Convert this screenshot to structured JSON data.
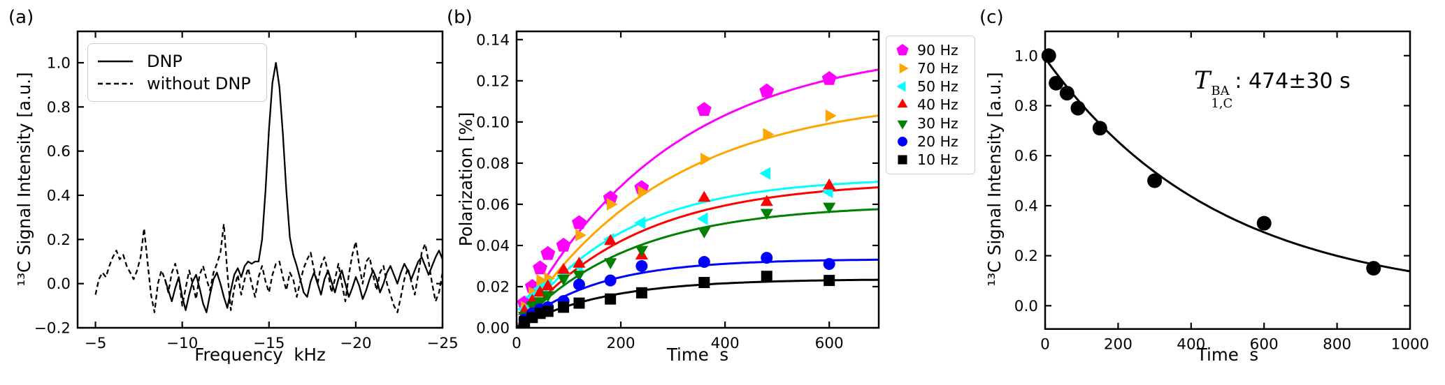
{
  "figure": {
    "background": "#ffffff",
    "axis_color": "#000000"
  },
  "chart_data": [
    {
      "id": "a",
      "type": "line",
      "panel_label": "(a)",
      "xlabel": "Frequency  kHz",
      "ylabel": "¹³C Signal Intensity [a.u.]",
      "xlim": [
        -3.97,
        -25.0
      ],
      "ylim": [
        -0.2,
        1.142
      ],
      "grid": false,
      "legend_position": "upper-left-inside",
      "xticks": [
        {
          "v": -5,
          "label": "−5"
        },
        {
          "v": -10,
          "label": "−10"
        },
        {
          "v": -15,
          "label": "−15"
        },
        {
          "v": -20,
          "label": "−20"
        },
        {
          "v": -25,
          "label": "−25"
        }
      ],
      "yticks": [
        {
          "v": -0.2,
          "label": "−0.2"
        },
        {
          "v": 0.0,
          "label": "0.0"
        },
        {
          "v": 0.2,
          "label": "0.2"
        },
        {
          "v": 0.4,
          "label": "0.4"
        },
        {
          "v": 0.6,
          "label": "0.6"
        },
        {
          "v": 0.8,
          "label": "0.8"
        },
        {
          "v": 1.0,
          "label": "1.0"
        }
      ],
      "legend": [
        {
          "label": "DNP",
          "line": "solid"
        },
        {
          "label": "without DNP",
          "line": "dashed"
        }
      ],
      "peak": {
        "center_khz": -15.4,
        "height": 1.0
      },
      "series": [
        {
          "name": "DNP",
          "style": "solid",
          "color": "#000000",
          "x_start": -9.0,
          "x_step": -0.2,
          "y": [
            0.02,
            -0.03,
            -0.08,
            -0.02,
            0.03,
            -0.06,
            -0.12,
            -0.05,
            0.01,
            0.04,
            -0.02,
            -0.09,
            -0.13,
            -0.05,
            0.02,
            0.05,
            0.0,
            -0.06,
            -0.11,
            -0.03,
            0.04,
            0.07,
            0.03,
            0.08,
            0.1,
            0.09,
            0.1,
            0.1,
            0.2,
            0.42,
            0.7,
            0.91,
            1.0,
            0.89,
            0.68,
            0.42,
            0.21,
            0.13,
            0.08,
            0.02,
            -0.04,
            -0.06,
            0.01,
            0.05,
            0.0,
            -0.05,
            0.02,
            0.06,
            0.01,
            -0.04,
            0.02,
            0.06,
            0.0,
            -0.06,
            -0.02,
            0.03,
            -0.01,
            -0.07,
            -0.03,
            0.02,
            0.06,
            0.02,
            -0.04,
            0.0,
            0.05,
            0.08,
            0.04,
            0.0,
            0.05,
            0.09,
            0.06,
            0.02,
            0.06,
            0.1,
            0.12,
            0.08,
            0.04,
            0.08,
            0.12,
            0.15,
            0.11
          ]
        },
        {
          "name": "without DNP",
          "style": "dashed",
          "color": "#000000",
          "x_start": -5.0,
          "x_step": -0.2,
          "y": [
            -0.05,
            0.02,
            0.05,
            0.03,
            0.08,
            0.12,
            0.15,
            0.11,
            0.13,
            0.08,
            0.05,
            0.02,
            0.06,
            0.12,
            0.25,
            0.1,
            -0.05,
            -0.13,
            0.0,
            0.06,
            0.02,
            -0.04,
            0.05,
            0.09,
            0.03,
            -0.1,
            -0.02,
            0.06,
            0.0,
            -0.07,
            0.04,
            0.08,
            0.02,
            -0.03,
            0.05,
            0.09,
            0.14,
            0.27,
            0.05,
            -0.12,
            -0.02,
            0.04,
            -0.05,
            0.02,
            0.07,
            0.0,
            -0.06,
            0.03,
            0.08,
            0.01,
            -0.04,
            0.04,
            0.09,
            0.1,
            0.03,
            -0.03,
            0.05,
            0.02,
            -0.06,
            0.01,
            0.07,
            0.11,
            0.14,
            0.06,
            0.0,
            0.08,
            0.12,
            0.05,
            -0.04,
            0.02,
            0.09,
            0.0,
            -0.08,
            0.04,
            0.13,
            0.19,
            0.08,
            0.0,
            0.1,
            0.12,
            0.04,
            -0.03,
            0.05,
            0.08,
            0.0,
            -0.05,
            -0.1,
            -0.13,
            -0.06,
            0.02,
            0.07,
            0.01,
            -0.05,
            0.04,
            0.14,
            0.18,
            0.1,
            0.0,
            -0.08,
            -0.04,
            0.05
          ]
        }
      ]
    },
    {
      "id": "b",
      "type": "scatter",
      "panel_label": "(b)",
      "xlabel": "Time  s",
      "ylabel": "Polarization [%]",
      "xlim": [
        0,
        695
      ],
      "ylim": [
        0,
        0.144
      ],
      "grid": false,
      "legend_position": "outside-right",
      "xticks": [
        {
          "v": 0,
          "label": "0"
        },
        {
          "v": 200,
          "label": "200"
        },
        {
          "v": 400,
          "label": "400"
        },
        {
          "v": 600,
          "label": "600"
        }
      ],
      "yticks": [
        {
          "v": 0.0,
          "label": "0.00"
        },
        {
          "v": 0.02,
          "label": "0.02"
        },
        {
          "v": 0.04,
          "label": "0.04"
        },
        {
          "v": 0.06,
          "label": "0.06"
        },
        {
          "v": 0.08,
          "label": "0.08"
        },
        {
          "v": 0.1,
          "label": "0.10"
        },
        {
          "v": 0.12,
          "label": "0.12"
        },
        {
          "v": 0.14,
          "label": "0.14"
        }
      ],
      "times": [
        15,
        30,
        45,
        60,
        90,
        120,
        180,
        240,
        360,
        480,
        600
      ],
      "series": [
        {
          "name": "90 Hz",
          "color": "#ff00ff",
          "marker": "pentagon",
          "values": [
            0.012,
            0.02,
            0.029,
            0.036,
            0.04,
            0.051,
            0.063,
            0.068,
            0.106,
            0.115,
            0.121
          ],
          "fit": {
            "model": "Pmax*(1-exp(-t/tau))",
            "pmax": 0.138,
            "tau": 290
          }
        },
        {
          "name": "70 Hz",
          "color": "#ffa500",
          "marker": "triangle-right",
          "values": [
            0.01,
            0.017,
            0.023,
            0.024,
            0.026,
            0.045,
            0.06,
            0.066,
            0.082,
            0.094,
            0.103
          ],
          "fit": {
            "model": "Pmax*(1-exp(-t/tau))",
            "pmax": 0.113,
            "tau": 285
          }
        },
        {
          "name": "50 Hz",
          "color": "#00ffff",
          "marker": "triangle-left",
          "values": [
            0.009,
            0.015,
            0.019,
            0.021,
            0.025,
            0.03,
            0.043,
            0.051,
            0.053,
            0.075,
            0.066
          ],
          "fit": {
            "model": "Pmax*(1-exp(-t/tau))",
            "pmax": 0.0732,
            "tau": 200
          }
        },
        {
          "name": "40 Hz",
          "color": "#ff0000",
          "marker": "triangle-up",
          "values": [
            0.008,
            0.013,
            0.017,
            0.02,
            0.028,
            0.031,
            0.042,
            0.035,
            0.063,
            0.061,
            0.069
          ],
          "fit": {
            "model": "Pmax*(1-exp(-t/tau))",
            "pmax": 0.0715,
            "tau": 225
          }
        },
        {
          "name": "30 Hz",
          "color": "#008000",
          "marker": "triangle-down",
          "values": [
            0.006,
            0.011,
            0.013,
            0.016,
            0.024,
            0.026,
            0.032,
            0.038,
            0.047,
            0.056,
            0.059
          ],
          "fit": {
            "model": "Pmax*(1-exp(-t/tau))",
            "pmax": 0.06,
            "tau": 215
          }
        },
        {
          "name": "20 Hz",
          "color": "#0000ff",
          "marker": "circle",
          "values": [
            0.004,
            0.007,
            0.009,
            0.01,
            0.013,
            0.021,
            0.023,
            0.03,
            0.032,
            0.034,
            0.031
          ],
          "fit": {
            "model": "Pmax*(1-exp(-t/tau))",
            "pmax": 0.0334,
            "tau": 150
          }
        },
        {
          "name": "10 Hz",
          "color": "#000000",
          "marker": "square",
          "values": [
            0.003,
            0.005,
            0.007,
            0.008,
            0.01,
            0.012,
            0.014,
            0.017,
            0.022,
            0.025,
            0.023
          ],
          "fit": {
            "model": "Pmax*(1-exp(-t/tau))",
            "pmax": 0.0237,
            "tau": 165
          }
        }
      ]
    },
    {
      "id": "c",
      "type": "scatter",
      "panel_label": "(c)",
      "xlabel": "Time  s",
      "ylabel": "¹³C Signal Intensity [a.u.]",
      "xlim": [
        0,
        1000
      ],
      "ylim": [
        -0.093,
        1.097
      ],
      "grid": false,
      "xticks": [
        {
          "v": 0,
          "label": "0"
        },
        {
          "v": 200,
          "label": "200"
        },
        {
          "v": 400,
          "label": "400"
        },
        {
          "v": 600,
          "label": "600"
        },
        {
          "v": 800,
          "label": "800"
        },
        {
          "v": 1000,
          "label": "1000"
        }
      ],
      "yticks": [
        {
          "v": 0.0,
          "label": "0.0"
        },
        {
          "v": 0.2,
          "label": "0.2"
        },
        {
          "v": 0.4,
          "label": "0.4"
        },
        {
          "v": 0.6,
          "label": "0.6"
        },
        {
          "v": 0.8,
          "label": "0.8"
        },
        {
          "v": 1.0,
          "label": "1.0"
        }
      ],
      "marker": {
        "shape": "circle",
        "color": "#000000"
      },
      "points": {
        "t": [
          10,
          30,
          60,
          90,
          150,
          300,
          600,
          900
        ],
        "y": [
          1.0,
          0.89,
          0.85,
          0.79,
          0.71,
          0.5,
          0.33,
          0.15
        ]
      },
      "fit": {
        "model": "a*exp(-t/T1)+c",
        "t1_s": 474,
        "t1_err_s": 30,
        "amplitude": 0.97,
        "offset": 0.02
      },
      "annotation": {
        "symbol": "T",
        "sup": "BA",
        "sub": "1,C",
        "rest": ": 474±30 s"
      }
    }
  ]
}
